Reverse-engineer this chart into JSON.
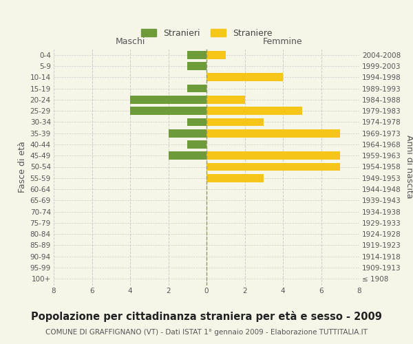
{
  "age_groups": [
    "100+",
    "95-99",
    "90-94",
    "85-89",
    "80-84",
    "75-79",
    "70-74",
    "65-69",
    "60-64",
    "55-59",
    "50-54",
    "45-49",
    "40-44",
    "35-39",
    "30-34",
    "25-29",
    "20-24",
    "15-19",
    "10-14",
    "5-9",
    "0-4"
  ],
  "birth_years": [
    "≤ 1908",
    "1909-1913",
    "1914-1918",
    "1919-1923",
    "1924-1928",
    "1929-1933",
    "1934-1938",
    "1939-1943",
    "1944-1948",
    "1949-1953",
    "1954-1958",
    "1959-1963",
    "1964-1968",
    "1969-1973",
    "1974-1978",
    "1979-1983",
    "1984-1988",
    "1989-1993",
    "1994-1998",
    "1999-2003",
    "2004-2008"
  ],
  "males": [
    0,
    0,
    0,
    0,
    0,
    0,
    0,
    0,
    0,
    0,
    0,
    2,
    1,
    2,
    1,
    4,
    4,
    1,
    0,
    1,
    1
  ],
  "females": [
    0,
    0,
    0,
    0,
    0,
    0,
    0,
    0,
    0,
    3,
    7,
    7,
    0,
    7,
    3,
    5,
    2,
    0,
    4,
    0,
    1
  ],
  "male_color": "#6d9b3a",
  "female_color": "#f5c518",
  "background_color": "#f5f5e8",
  "grid_color": "#cccccc",
  "title": "Popolazione per cittadinanza straniera per età e sesso - 2009",
  "subtitle": "COMUNE DI GRAFFIGNANO (VT) - Dati ISTAT 1° gennaio 2009 - Elaborazione TUTTITALIA.IT",
  "xlabel_left": "Maschi",
  "xlabel_right": "Femmine",
  "ylabel_left": "Fasce di età",
  "ylabel_right": "Anni di nascita",
  "legend_male": "Stranieri",
  "legend_female": "Straniere",
  "xlim": 8,
  "title_fontsize": 10.5,
  "subtitle_fontsize": 7.5,
  "tick_fontsize": 7.5,
  "label_fontsize": 9
}
